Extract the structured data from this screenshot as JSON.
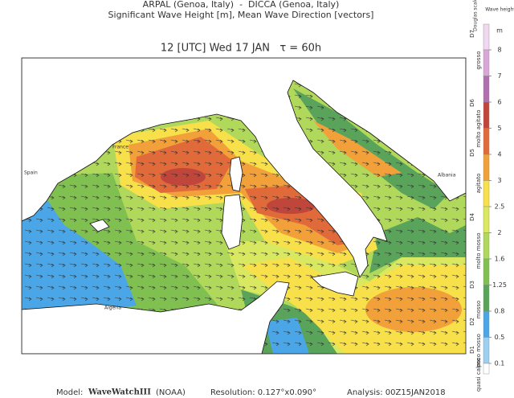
{
  "header": {
    "line1": "ARPAL (Genoa, Italy)  -  DICCA (Genoa, Italy)",
    "line2": "Significant Wave Height [m], Mean Wave Direction [vectors]",
    "line3": "12 [UTC] Wed 17 JAN   τ = 60h"
  },
  "places": [
    {
      "label": "France"
    },
    {
      "label": "Spain"
    },
    {
      "label": "Algeria"
    },
    {
      "label": "Albania"
    }
  ],
  "colorbar": {
    "title": "Wave height",
    "unit": "m",
    "douglas_title": "Douglas scale",
    "levels": [
      8,
      7,
      6,
      5,
      4,
      3,
      2.5,
      2,
      1.6,
      1.25,
      0.8,
      0.5,
      0.1
    ],
    "colors": [
      "#f0d8f0",
      "#d9a6d9",
      "#b070b0",
      "#c0463c",
      "#e06a3a",
      "#f2a03a",
      "#f8e04a",
      "#d8e860",
      "#b0d85a",
      "#80c050",
      "#5aa35a",
      "#4aa6e6",
      "#9ccff0",
      "#ffffff"
    ],
    "douglas": [
      "D7",
      "D6",
      "D5",
      "D4",
      "D3",
      "D2",
      "D1"
    ],
    "states": [
      "grosso",
      "molto agitato",
      "agitato",
      "molto mosso",
      "mosso",
      "poco mosso",
      "quasi calmo"
    ]
  },
  "footer": {
    "model_prefix": "Model:",
    "model": "WaveWatchIII",
    "model_suffix": "(NOAA)",
    "resolution": "Resolution: 0.127°x0.090°",
    "analysis": "Analysis: 00Z15JAN2018"
  }
}
